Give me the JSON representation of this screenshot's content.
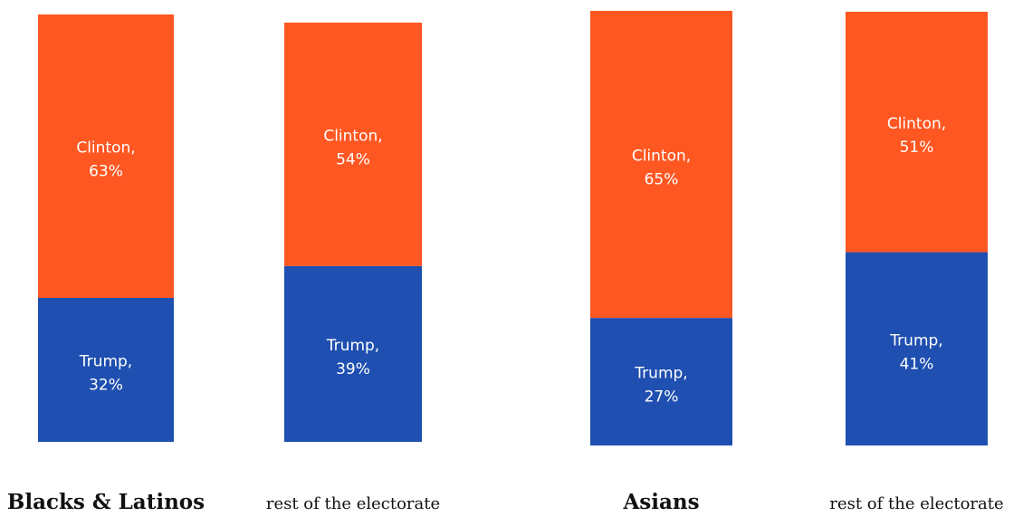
{
  "colors": {
    "clinton": "#FF5722",
    "trump": "#1F4FB0"
  },
  "chart_data": {
    "type": "bar",
    "stacked": true,
    "normalized_to_visible_total": true,
    "categories": [
      "Blacks & Latinos",
      "rest of the electorate",
      "Asians",
      "rest of the electorate"
    ],
    "series": [
      {
        "name": "Trump",
        "values": [
          32,
          39,
          27,
          41
        ],
        "color": "#1F4FB0"
      },
      {
        "name": "Clinton",
        "values": [
          63,
          54,
          65,
          51
        ],
        "color": "#FF5722"
      }
    ],
    "segment_labels": {
      "Trump": [
        "Trump,",
        "Trump,",
        "Trump,",
        "Trump,"
      ],
      "Clinton": [
        "Clinton,",
        "Clinton,",
        "Clinton,",
        "Clinton,"
      ]
    },
    "value_labels": {
      "Trump": [
        "32%",
        "39%",
        "27%",
        "41%"
      ],
      "Clinton": [
        "63%",
        "54%",
        "65%",
        "51%"
      ]
    },
    "title": "",
    "xlabel": "",
    "ylabel": "",
    "axes_visible": false,
    "grid": false,
    "legend": "none"
  }
}
